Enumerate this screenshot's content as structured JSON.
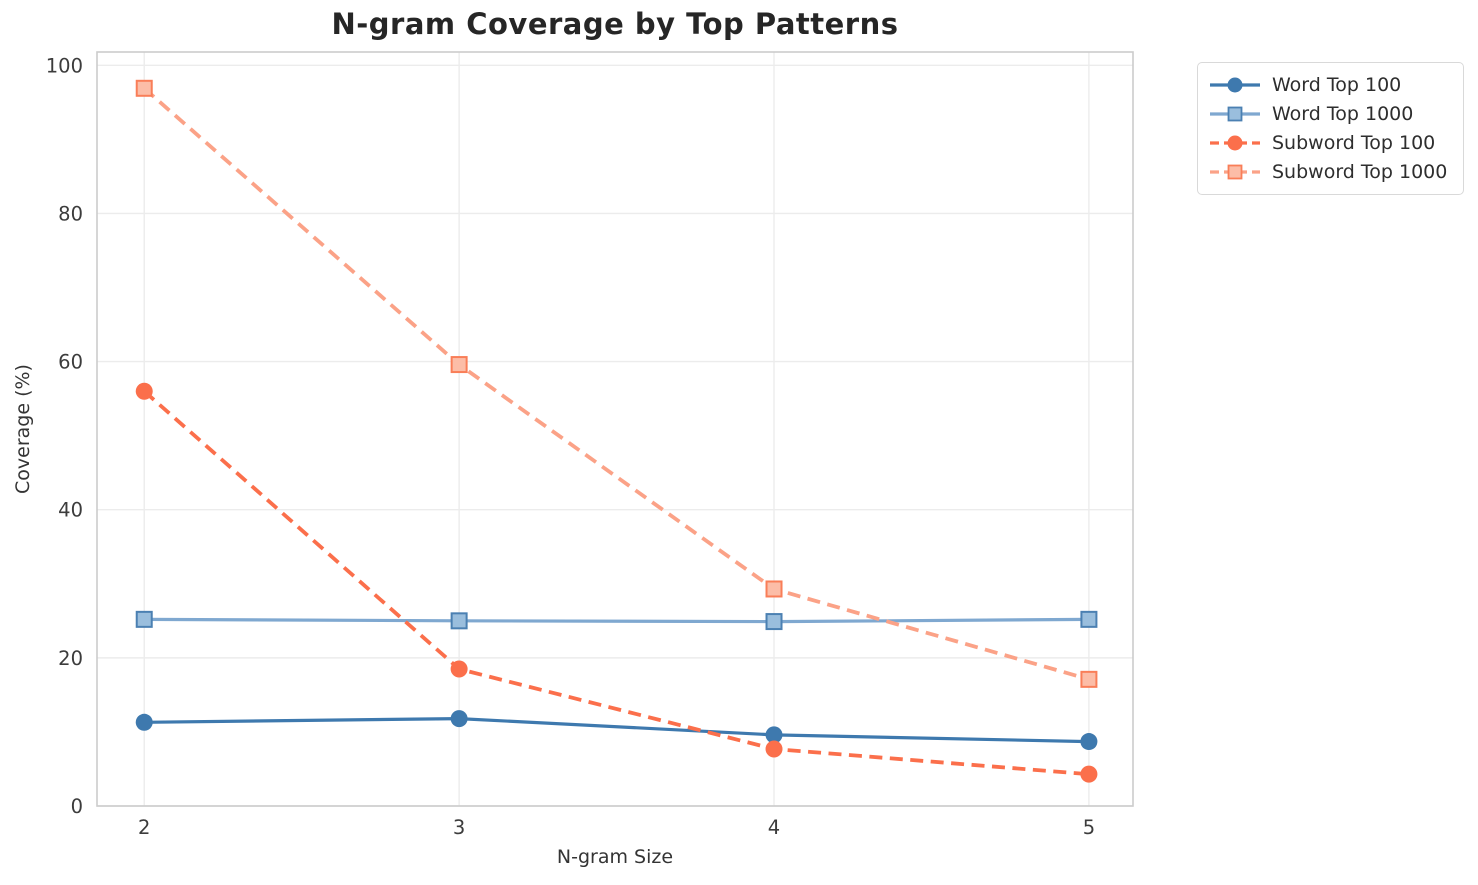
{
  "chart_data": {
    "type": "line",
    "title": "N-gram Coverage by Top Patterns",
    "xlabel": "N-gram Size",
    "ylabel": "Coverage (%)",
    "x": [
      2,
      3,
      4,
      5
    ],
    "xticks": [
      2,
      3,
      4,
      5
    ],
    "yticks": [
      0,
      20,
      40,
      60,
      80,
      100
    ],
    "xlim": [
      1.85,
      5.14
    ],
    "ylim": [
      0,
      101.8
    ],
    "grid": true,
    "legend_position": "upper right, outside plot",
    "grid_color": "#ececec",
    "spine_color": "#cccccc",
    "title_color": "#262626",
    "tick_color": "#3c3c3c",
    "series": [
      {
        "name": "Word Top 100",
        "color": "#3e79ae",
        "line_style": "solid",
        "marker": "circle",
        "marker_fill": "#3e79ae",
        "marker_edge": "#3e79ae",
        "values": [
          11.3,
          11.8,
          9.6,
          8.7
        ]
      },
      {
        "name": "Word Top 1000",
        "color": "#7fa8d0",
        "line_style": "solid",
        "marker": "square",
        "marker_fill": "#9abedd",
        "marker_edge": "#4b80b2",
        "values": [
          25.2,
          25.0,
          24.9,
          25.2
        ]
      },
      {
        "name": "Subword Top 100",
        "color": "#fb6f4b",
        "line_style": "dashed",
        "marker": "circle",
        "marker_fill": "#fb6f4b",
        "marker_edge": "#fb6f4b",
        "values": [
          56.0,
          18.5,
          7.7,
          4.3
        ]
      },
      {
        "name": "Subword Top 1000",
        "color": "#fba287",
        "line_style": "dashed",
        "marker": "square",
        "marker_fill": "#fcbda7",
        "marker_edge": "#f97e58",
        "values": [
          96.9,
          59.6,
          29.3,
          17.1
        ]
      }
    ]
  }
}
